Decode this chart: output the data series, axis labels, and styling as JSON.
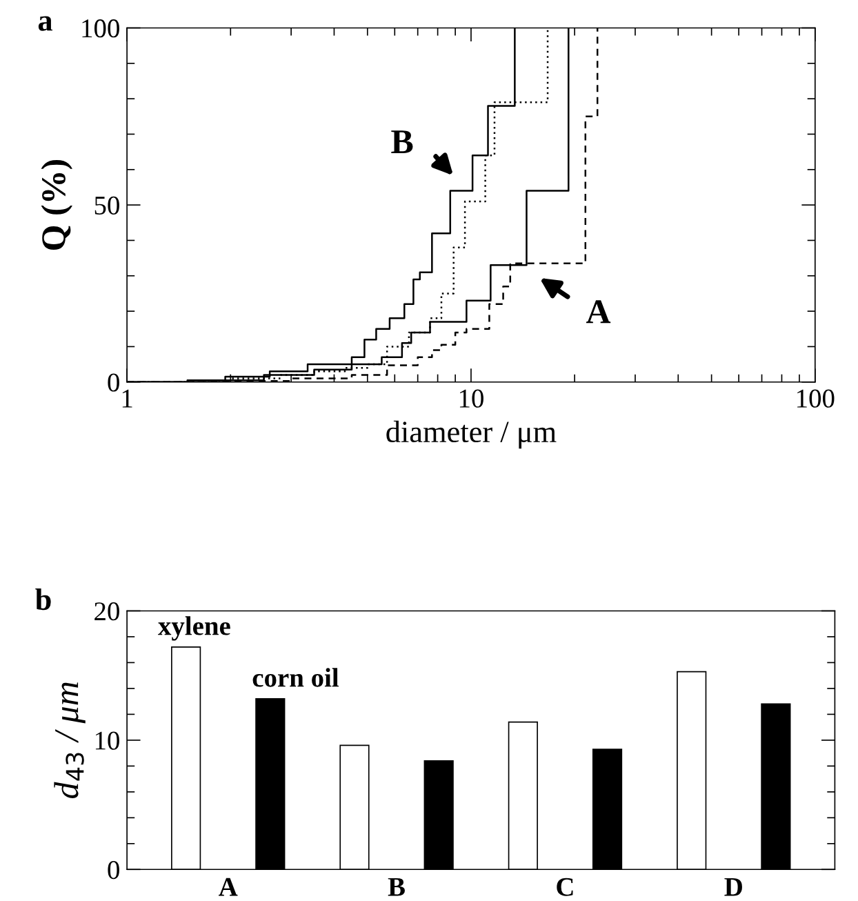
{
  "chart_data": [
    {
      "type": "step",
      "title": "a",
      "xlabel": "diameter / μm",
      "ylabel": "Q (%)",
      "log": "x",
      "xlim": [
        1,
        100
      ],
      "ylim": [
        0,
        100
      ],
      "xticks": [
        1,
        {
          "value": 2,
          "label": null
        },
        {
          "value": 3,
          "label": null
        },
        {
          "value": 4,
          "label": null
        },
        {
          "value": 5,
          "label": null
        },
        {
          "value": 6,
          "label": null
        },
        {
          "value": 7,
          "label": null
        },
        {
          "value": 8,
          "label": null
        },
        {
          "value": 9,
          "label": null
        },
        10,
        {
          "value": 20,
          "label": null
        },
        {
          "value": 30,
          "label": null
        },
        {
          "value": 40,
          "label": null
        },
        {
          "value": 50,
          "label": null
        },
        {
          "value": 60,
          "label": null
        },
        {
          "value": 70,
          "label": null
        },
        {
          "value": 80,
          "label": null
        },
        {
          "value": 90,
          "label": null
        },
        100
      ],
      "yticks": [
        0,
        {
          "value": 10,
          "label": null
        },
        {
          "value": 20,
          "label": null
        },
        {
          "value": 30,
          "label": null
        },
        {
          "value": 40,
          "label": null
        },
        50,
        {
          "value": 60,
          "label": null
        },
        {
          "value": 70,
          "label": null
        },
        {
          "value": 80,
          "label": null
        },
        {
          "value": 90,
          "label": null
        },
        100
      ],
      "series": [
        {
          "color": "#000000",
          "line_style": "solid",
          "x": [
            1,
            1.5,
            1.93,
            2.6,
            3.35,
            4.5,
            4.9,
            5.3,
            5.8,
            6.4,
            6.8,
            7.1,
            7.7,
            8.7,
            10.1,
            11.2,
            13.4
          ],
          "values": [
            0,
            0.5,
            1.5,
            3,
            5,
            7,
            12,
            15,
            18,
            22,
            29,
            31,
            42,
            54,
            64,
            78,
            100
          ]
        },
        {
          "color": "#000000",
          "line_style": "dotted",
          "x": [
            1,
            1.5,
            2.0,
            2.8,
            3.5,
            4.3,
            5.0,
            5.7,
            6.6,
            7.6,
            8.2,
            8.9,
            9.6,
            11.0,
            11.7,
            16.7
          ],
          "values": [
            0,
            0.5,
            1,
            2,
            3,
            4,
            5,
            10,
            14,
            18,
            25,
            38,
            51,
            64,
            79,
            100
          ]
        },
        {
          "color": "#000000",
          "line_style": "solid",
          "x": [
            1,
            1.5,
            2.5,
            3.5,
            4.5,
            5.5,
            6.3,
            6.7,
            7.6,
            9.7,
            11.4,
            14.5,
            19.2
          ],
          "values": [
            0,
            0.5,
            2,
            3.5,
            5,
            7,
            11,
            14,
            17,
            23,
            33,
            54,
            100
          ]
        },
        {
          "color": "#000000",
          "line_style": "dashed",
          "x": [
            1,
            1.7,
            3,
            4.5,
            5.7,
            7.0,
            7.7,
            8.2,
            9.0,
            9.7,
            11.3,
            12.4,
            13.0,
            21.5,
            23.3
          ],
          "values": [
            0,
            0.3,
            1,
            2,
            4.7,
            7,
            9,
            10.5,
            14,
            15,
            22,
            27,
            33.5,
            75,
            100
          ]
        }
      ],
      "annotations": [
        "B",
        "A"
      ],
      "grid": false,
      "legend": false
    },
    {
      "type": "bar",
      "title": "b",
      "ylabel": "d$_{43}$ / μm",
      "categories": [
        "A",
        "B",
        "C",
        "D"
      ],
      "ylim": [
        0,
        20
      ],
      "yticks": [
        0,
        {
          "value": 2,
          "label": null
        },
        {
          "value": 4,
          "label": null
        },
        {
          "value": 6,
          "label": null
        },
        {
          "value": 8,
          "label": null
        },
        10,
        {
          "value": 12,
          "label": null
        },
        {
          "value": 14,
          "label": null
        },
        {
          "value": 16,
          "label": null
        },
        {
          "value": 18,
          "label": null
        },
        20
      ],
      "series": [
        {
          "name": "xylene",
          "color": "#ffffff",
          "values": [
            17.2,
            9.6,
            11.4,
            15.3
          ]
        },
        {
          "name": "corn oil",
          "color": "#000000",
          "values": [
            13.2,
            8.4,
            9.3,
            12.8
          ]
        }
      ],
      "grid": false,
      "legend": false
    }
  ]
}
